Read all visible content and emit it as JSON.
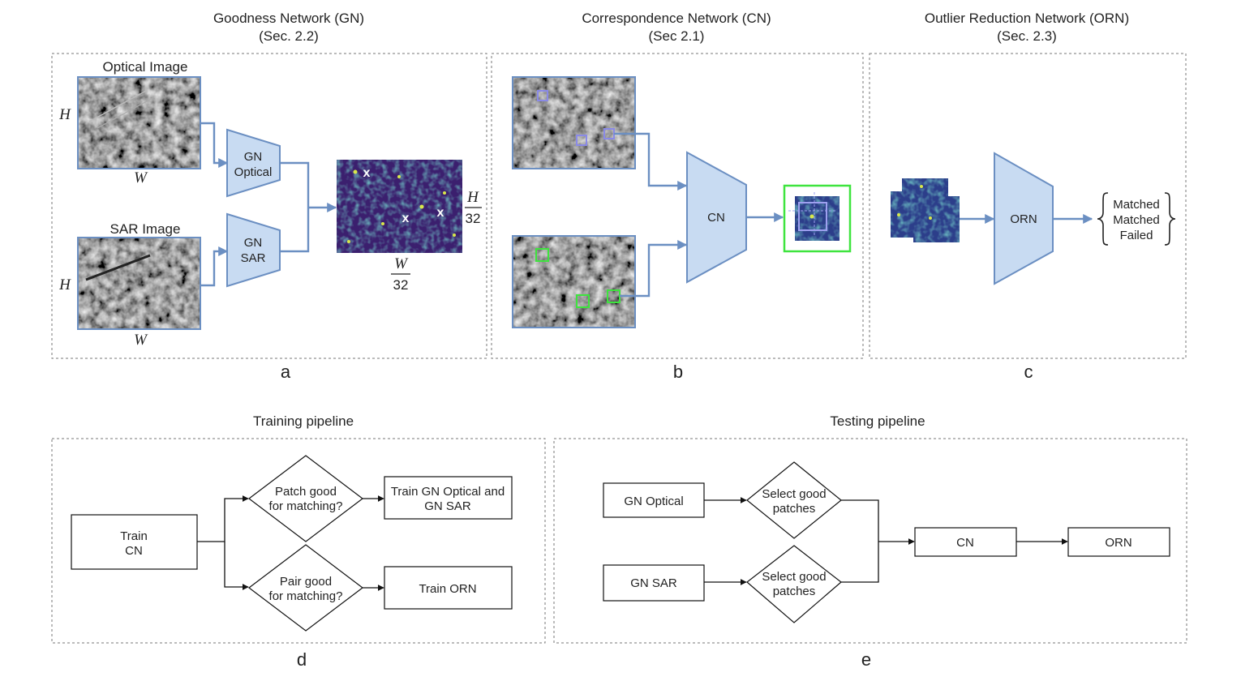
{
  "panel_a": {
    "title": "Goodness Network (GN)",
    "section": "(Sec. 2.2)",
    "optical_label": "Optical Image",
    "sar_label": "SAR Image",
    "h_symbol": "H",
    "w_symbol": "W",
    "gn_optical_line1": "GN",
    "gn_optical_line2": "Optical",
    "gn_sar_line1": "GN",
    "gn_sar_line2": "SAR",
    "heatmap_marker": "x",
    "frac_h_num": "H",
    "frac_h_den": "32",
    "frac_w_num": "W",
    "frac_w_den": "32",
    "caption": "a"
  },
  "panel_b": {
    "title": "Correspondence Network (CN)",
    "section": "(Sec 2.1)",
    "net_label": "CN",
    "caption": "b"
  },
  "panel_c": {
    "title": "Outlier Reduction Network (ORN)",
    "section": "(Sec. 2.3)",
    "net_label": "ORN",
    "outputs": [
      "Matched",
      "Matched",
      "Failed"
    ],
    "caption": "c"
  },
  "panel_d": {
    "title": "Training pipeline",
    "train_cn_line1": "Train",
    "train_cn_line2": "CN",
    "decision1_line1": "Patch good",
    "decision1_line2": "for matching?",
    "decision2_line1": "Pair good",
    "decision2_line2": "for matching?",
    "train_gn_line1": "Train GN Optical and",
    "train_gn_line2": "GN SAR",
    "train_orn": "Train ORN",
    "caption": "d"
  },
  "panel_e": {
    "title": "Testing pipeline",
    "gn_optical": "GN Optical",
    "gn_sar": "GN SAR",
    "select1_line1": "Select good",
    "select1_line2": "patches",
    "select2_line1": "Select good",
    "select2_line2": "patches",
    "cn": "CN",
    "orn": "ORN",
    "caption": "e"
  },
  "colors": {
    "network_fill": "#c8dbf2",
    "network_stroke": "#6b8fc2",
    "heatmap_base": "#3b1f6e",
    "heatmap_hot": "#d8e84a",
    "patch_purple": "#8a8ae6",
    "patch_green": "#3ee43e"
  }
}
